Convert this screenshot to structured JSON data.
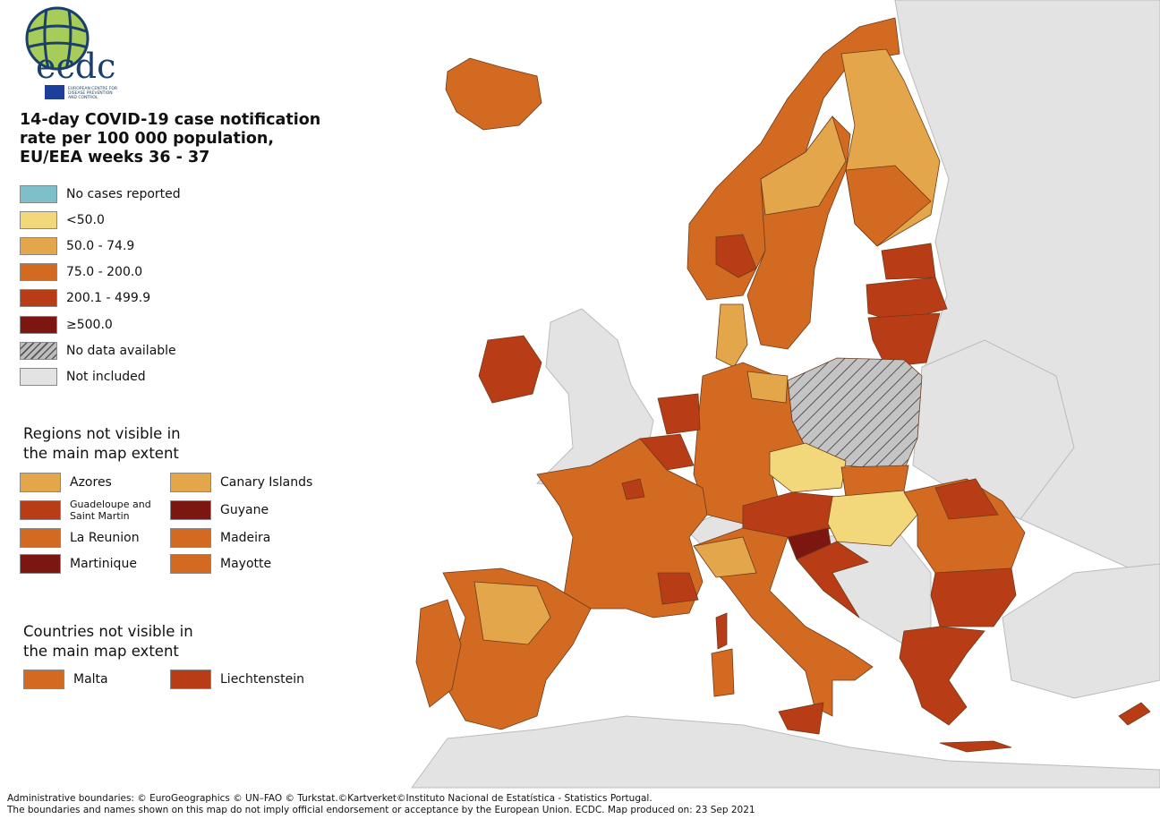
{
  "logo": {
    "text": "ecdc",
    "subtitle": "EUROPEAN CENTRE FOR DISEASE PREVENTION AND CONTROL"
  },
  "title": "14-day COVID-19 case notification rate per 100 000 population, EU/EEA weeks 36 - 37",
  "legend": [
    {
      "label": "No cases reported",
      "color": "#7fbfca"
    },
    {
      "label": "<50.0",
      "color": "#f2d77b"
    },
    {
      "label": "50.0 - 74.9",
      "color": "#e3a64a"
    },
    {
      "label": "75.0 - 200.0",
      "color": "#d26a22"
    },
    {
      "label": "200.1 - 499.9",
      "color": "#b83d17"
    },
    {
      "label": "≥500.0",
      "color": "#7b1710"
    },
    {
      "label": "No data available",
      "color": "hatched"
    },
    {
      "label": "Not included",
      "color": "#e3e3e3"
    }
  ],
  "regions_heading": "Regions not visible in the main map extent",
  "regions": [
    {
      "label": "Azores",
      "color": "#e3a64a"
    },
    {
      "label": "Canary Islands",
      "color": "#e3a64a"
    },
    {
      "label": "Guadeloupe and Saint Martin",
      "color": "#b83d17"
    },
    {
      "label": "Guyane",
      "color": "#7b1710"
    },
    {
      "label": "La Reunion",
      "color": "#d26a22"
    },
    {
      "label": "Madeira",
      "color": "#d26a22"
    },
    {
      "label": "Martinique",
      "color": "#7b1710"
    },
    {
      "label": "Mayotte",
      "color": "#d26a22"
    }
  ],
  "countries_heading": "Countries not visible in the main map extent",
  "countries": [
    {
      "label": "Malta",
      "color": "#d26a22"
    },
    {
      "label": "Liechtenstein",
      "color": "#b83d17"
    }
  ],
  "footer": {
    "line1": "Administrative boundaries: © EuroGeographics © UN–FAO © Turkstat.©Kartverket©Instituto Nacional de Estatística - Statistics Portugal.",
    "line2": "The boundaries and names shown on this map do not imply official endorsement or acceptance by the European Union. ECDC. Map produced on: 23 Sep 2021"
  }
}
